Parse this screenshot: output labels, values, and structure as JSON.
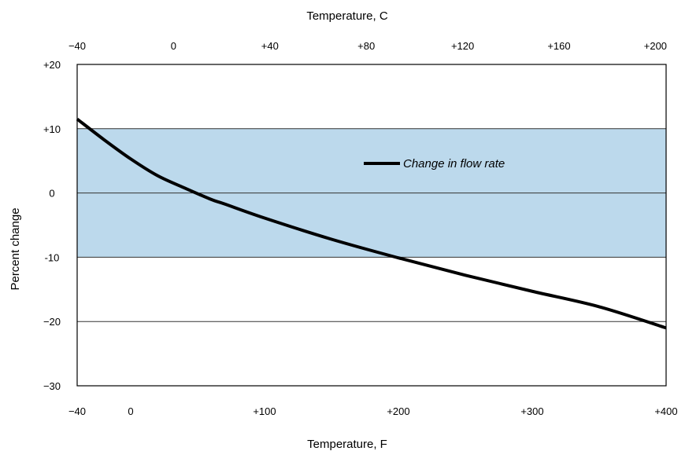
{
  "chart_data": {
    "type": "line",
    "title": "",
    "top_axis_title": "Temperature, C",
    "bottom_axis_title": "Temperature, F",
    "ylabel": "Percent change",
    "xlim_F": [
      -40,
      400
    ],
    "ylim": [
      -30,
      20
    ],
    "top_ticks": [
      "−40",
      "0",
      "+40",
      "+80",
      "+120",
      "+160",
      "+200"
    ],
    "top_tick_values_C": [
      -40,
      0,
      40,
      80,
      120,
      160,
      200
    ],
    "bottom_ticks": [
      "−40",
      "0",
      "+100",
      "+200",
      "+300",
      "+400"
    ],
    "bottom_tick_values_F": [
      -40,
      0,
      100,
      200,
      300,
      400
    ],
    "y_ticks": [
      "+20",
      "+10",
      "0",
      "-10",
      "−20",
      "−30"
    ],
    "y_tick_values": [
      20,
      10,
      0,
      -10,
      -20,
      -30
    ],
    "gridlines_y": [
      10,
      0,
      -10,
      -20
    ],
    "band": {
      "from": -10,
      "to": 10,
      "color": "#bcd9ec"
    },
    "legend_position": "upper-center-right",
    "series": [
      {
        "name": "Change in flow rate",
        "color": "#000000",
        "x_F": [
          -40,
          -20,
          0,
          20,
          40,
          60,
          70,
          100,
          150,
          200,
          250,
          300,
          350,
          400
        ],
        "y": [
          11.5,
          8.3,
          5.3,
          2.7,
          0.8,
          -1.0,
          -1.7,
          -3.9,
          -7.2,
          -10.1,
          -12.8,
          -15.3,
          -17.7,
          -21.0
        ]
      }
    ]
  }
}
